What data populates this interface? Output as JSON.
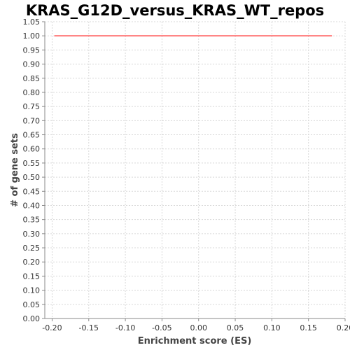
{
  "chart_data": {
    "type": "line",
    "title": "KRAS_G12D_versus_KRAS_WT_repos",
    "xlabel": "Enrichment score (ES)",
    "ylabel": "# of gene sets",
    "xlim": [
      -0.21,
      0.2
    ],
    "ylim": [
      0.0,
      1.05
    ],
    "x_ticks": [
      "-0.20",
      "-0.15",
      "-0.10",
      "-0.05",
      "0.00",
      "0.05",
      "0.10",
      "0.15",
      "0.20"
    ],
    "y_ticks": [
      "0.00",
      "0.05",
      "0.10",
      "0.15",
      "0.20",
      "0.25",
      "0.30",
      "0.35",
      "0.40",
      "0.45",
      "0.50",
      "0.55",
      "0.60",
      "0.65",
      "0.70",
      "0.75",
      "0.80",
      "0.85",
      "0.90",
      "0.95",
      "1.00",
      "1.05"
    ],
    "grid": true,
    "legend": "none",
    "series": [
      {
        "color": "#ff5555",
        "x": [
          -0.197,
          0.182
        ],
        "y": [
          1.0,
          1.0
        ]
      }
    ]
  }
}
